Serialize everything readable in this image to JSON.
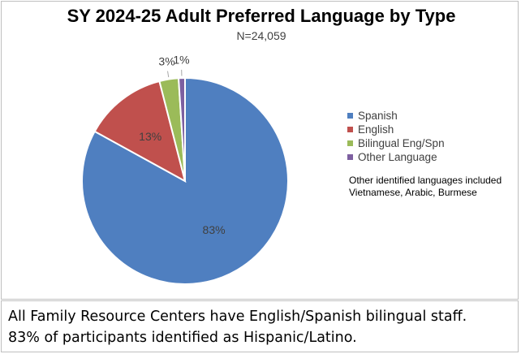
{
  "chart_data": {
    "type": "pie",
    "title": "SY 2024-25 Adult Preferred Language by Type",
    "subtitle": "N=24,059",
    "slices": [
      {
        "name": "Spanish",
        "value": 83,
        "label": "83%",
        "color": "#4f7fc0"
      },
      {
        "name": "English",
        "value": 13,
        "label": "13%",
        "color": "#c0504d"
      },
      {
        "name": "Bilingual Eng/Spn",
        "value": 3,
        "label": "3%",
        "color": "#9bbb59"
      },
      {
        "name": "Other Language",
        "value": 1,
        "label": "1%",
        "color": "#7d5fa0"
      }
    ],
    "legend_position": "right",
    "note": "Other identified languages included Vietnamese, Arabic, Burmese"
  },
  "caption": {
    "line1": "All Family Resource Centers have English/Spanish bilingual staff.",
    "line2": "83% of participants identified as Hispanic/Latino."
  }
}
